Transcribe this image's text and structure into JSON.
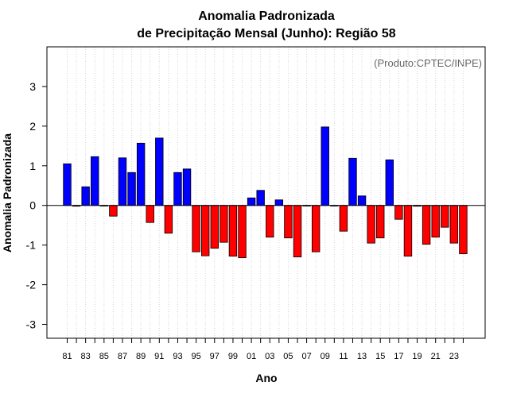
{
  "chart_data": {
    "type": "bar",
    "title": "Anomalia Padronizada",
    "subtitle": "de Precipitação Mensal (Junho): Região 58",
    "xlabel": "Ano",
    "ylabel": "Anomalia Padronizada",
    "credit": "(Produto:CPTEC/INPE)",
    "ylim": [
      -3.35,
      4.0
    ],
    "yticks": [
      "-3",
      "-2",
      "-1",
      "0",
      "1",
      "2",
      "3"
    ],
    "categories": [
      "81",
      "82",
      "83",
      "84",
      "85",
      "86",
      "87",
      "88",
      "89",
      "90",
      "91",
      "92",
      "93",
      "94",
      "95",
      "96",
      "97",
      "98",
      "99",
      "00",
      "01",
      "02",
      "03",
      "04",
      "05",
      "06",
      "07",
      "08",
      "09",
      "10",
      "11",
      "12",
      "13",
      "14",
      "15",
      "16",
      "17",
      "18",
      "19",
      "20",
      "21",
      "22",
      "23",
      "24"
    ],
    "xtick_labels": [
      "81",
      "83",
      "85",
      "87",
      "89",
      "91",
      "93",
      "95",
      "97",
      "99",
      "01",
      "03",
      "05",
      "07",
      "09",
      "11",
      "13",
      "15",
      "17",
      "19",
      "21",
      "23"
    ],
    "values": [
      1.05,
      -0.02,
      0.47,
      1.23,
      0.0,
      -0.27,
      1.2,
      0.83,
      1.57,
      -0.43,
      1.7,
      -0.7,
      0.83,
      0.92,
      -1.17,
      -1.27,
      -1.08,
      -0.93,
      -1.28,
      -1.32,
      0.19,
      0.38,
      -0.8,
      0.14,
      -0.82,
      -1.3,
      0.0,
      -1.17,
      1.98,
      0.0,
      -0.65,
      1.19,
      0.24,
      -0.95,
      -0.82,
      1.15,
      -0.35,
      -1.28,
      -0.02,
      -0.98,
      -0.8,
      -0.55,
      -0.95,
      -1.22
    ],
    "colors": {
      "positive": "#0000ff",
      "negative": "#ff0000",
      "zero_line": "#000000",
      "grid": "#d3d3d3"
    },
    "grid": true
  }
}
